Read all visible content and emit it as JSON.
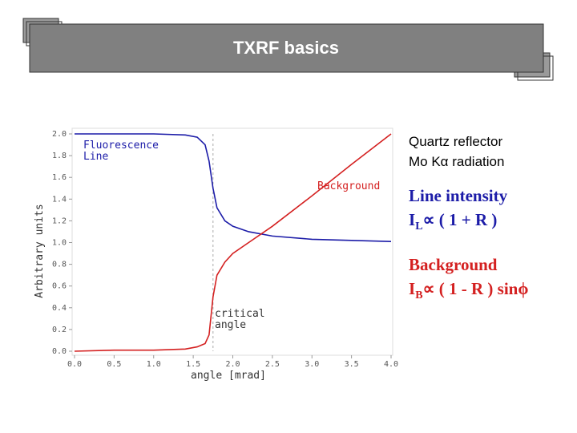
{
  "slide": {
    "title": "TXRF basics",
    "reflector": "Quartz reflector",
    "radiation": "Mo Kα radiation",
    "line_heading": "Line intensity",
    "line_formula": {
      "symbol": "I",
      "sub": "L",
      "rest": "∝ ( 1 + R )"
    },
    "bg_heading": "Background",
    "bg_formula": {
      "symbol": "I",
      "sub": "B",
      "rest": "∝ ( 1 - R ) sinϕ"
    }
  },
  "chart_data": {
    "type": "line",
    "xlabel": "angle [mrad]",
    "ylabel": "Arbitrary units",
    "x": [
      0,
      0.5,
      1.0,
      1.4,
      1.55,
      1.65,
      1.7,
      1.75,
      1.8,
      1.9,
      2.0,
      2.2,
      2.5,
      3.0,
      3.5,
      4.0
    ],
    "series": [
      {
        "name": "Fluorescence Line",
        "color": "#1c1ca8",
        "values": [
          2.0,
          2.0,
          2.0,
          1.99,
          1.97,
          1.9,
          1.75,
          1.5,
          1.32,
          1.2,
          1.15,
          1.1,
          1.06,
          1.03,
          1.02,
          1.01
        ]
      },
      {
        "name": "Background",
        "color": "#d42020",
        "values": [
          0.0,
          0.01,
          0.01,
          0.02,
          0.04,
          0.07,
          0.15,
          0.5,
          0.7,
          0.82,
          0.9,
          1.0,
          1.15,
          1.43,
          1.72,
          2.0
        ]
      }
    ],
    "vlines": [
      1.75
    ],
    "annotations": [
      "critical angle"
    ],
    "xlim": [
      0,
      4
    ],
    "ylim": [
      0,
      2
    ],
    "xticks": [
      {
        "value": 0,
        "label": "0.0"
      },
      0.5,
      {
        "value": 1,
        "label": "1.0"
      },
      1.5,
      {
        "value": 2,
        "label": "2.0"
      },
      2.5,
      {
        "value": 3,
        "label": "3.0"
      },
      3.5,
      {
        "value": 4,
        "label": "4.0"
      }
    ],
    "yticks": [
      {
        "value": 0,
        "label": "0.0"
      },
      0.2,
      0.4,
      0.6,
      0.8,
      {
        "value": 1,
        "label": "1.0"
      },
      1.2,
      1.4,
      1.6,
      1.8,
      {
        "value": 2,
        "label": "2.0"
      }
    ]
  }
}
